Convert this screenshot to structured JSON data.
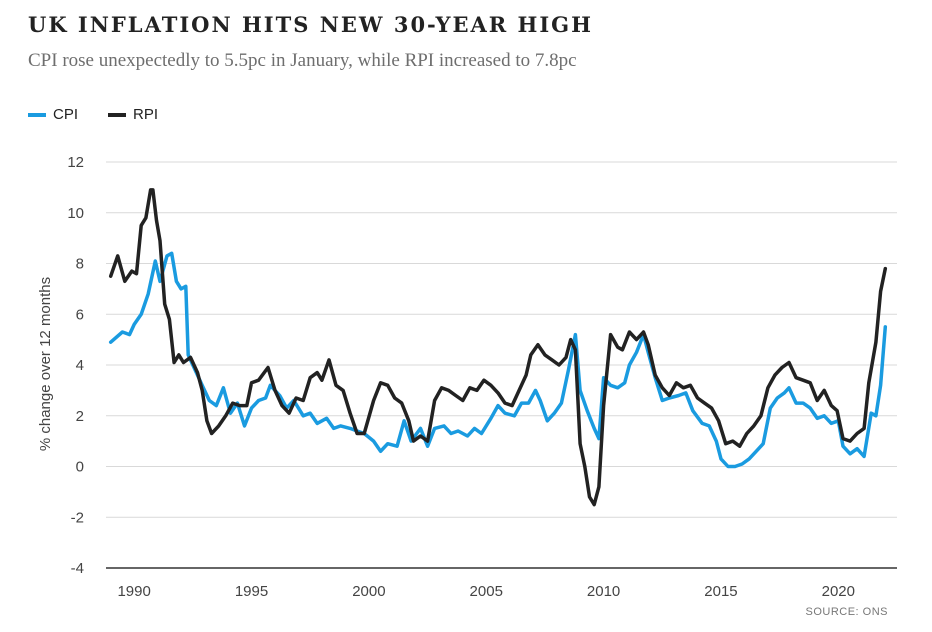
{
  "header": {
    "title": "UK INFLATION HITS NEW 30-YEAR HIGH",
    "subtitle": "CPI rose unexpectedly to 5.5pc in January, while RPI increased to 7.8pc"
  },
  "footer": {
    "source": "SOURCE: ONS"
  },
  "colors": {
    "cpi": "#1a9be0",
    "rpi": "#222222",
    "grid": "#d9d9d9",
    "axis": "#333333"
  },
  "chart_data": {
    "type": "line",
    "title": "UK INFLATION HITS NEW 30-YEAR HIGH",
    "subtitle": "CPI rose unexpectedly to 5.5pc in January, while RPI increased to 7.8pc",
    "xlabel": "",
    "ylabel": "% change over 12 months",
    "xlim": [
      1988.8,
      2022.5
    ],
    "ylim": [
      -4,
      12
    ],
    "yticks": [
      -4,
      -2,
      0,
      2,
      4,
      6,
      8,
      10,
      12
    ],
    "xticks": [
      1990,
      1995,
      2000,
      2005,
      2010,
      2015,
      2020
    ],
    "grid": true,
    "legend": "top-left",
    "series": [
      {
        "name": "CPI",
        "color": "#1a9be0",
        "points": [
          [
            1989.0,
            4.9
          ],
          [
            1989.5,
            5.3
          ],
          [
            1989.8,
            5.2
          ],
          [
            1990.0,
            5.6
          ],
          [
            1990.3,
            6.0
          ],
          [
            1990.6,
            6.8
          ],
          [
            1990.9,
            8.1
          ],
          [
            1991.1,
            7.3
          ],
          [
            1991.4,
            8.3
          ],
          [
            1991.6,
            8.4
          ],
          [
            1991.8,
            7.3
          ],
          [
            1992.0,
            7.0
          ],
          [
            1992.2,
            7.1
          ],
          [
            1992.3,
            4.4
          ],
          [
            1992.6,
            3.8
          ],
          [
            1992.9,
            3.2
          ],
          [
            1993.2,
            2.6
          ],
          [
            1993.5,
            2.4
          ],
          [
            1993.8,
            3.1
          ],
          [
            1994.1,
            2.1
          ],
          [
            1994.4,
            2.5
          ],
          [
            1994.7,
            1.6
          ],
          [
            1995.0,
            2.3
          ],
          [
            1995.3,
            2.6
          ],
          [
            1995.6,
            2.7
          ],
          [
            1995.8,
            3.2
          ],
          [
            1996.2,
            2.8
          ],
          [
            1996.5,
            2.3
          ],
          [
            1996.8,
            2.6
          ],
          [
            1997.2,
            2.0
          ],
          [
            1997.5,
            2.1
          ],
          [
            1997.8,
            1.7
          ],
          [
            1998.2,
            1.9
          ],
          [
            1998.5,
            1.5
          ],
          [
            1998.8,
            1.6
          ],
          [
            1999.2,
            1.5
          ],
          [
            1999.5,
            1.4
          ],
          [
            1999.8,
            1.3
          ],
          [
            2000.2,
            1.0
          ],
          [
            2000.5,
            0.6
          ],
          [
            2000.8,
            0.9
          ],
          [
            2001.2,
            0.8
          ],
          [
            2001.5,
            1.8
          ],
          [
            2001.8,
            1.0
          ],
          [
            2002.2,
            1.5
          ],
          [
            2002.5,
            0.8
          ],
          [
            2002.8,
            1.5
          ],
          [
            2003.2,
            1.6
          ],
          [
            2003.5,
            1.3
          ],
          [
            2003.8,
            1.4
          ],
          [
            2004.2,
            1.2
          ],
          [
            2004.5,
            1.5
          ],
          [
            2004.8,
            1.3
          ],
          [
            2005.2,
            1.9
          ],
          [
            2005.5,
            2.4
          ],
          [
            2005.8,
            2.1
          ],
          [
            2006.2,
            2.0
          ],
          [
            2006.5,
            2.5
          ],
          [
            2006.8,
            2.5
          ],
          [
            2007.1,
            3.0
          ],
          [
            2007.3,
            2.6
          ],
          [
            2007.6,
            1.8
          ],
          [
            2007.9,
            2.1
          ],
          [
            2008.2,
            2.5
          ],
          [
            2008.5,
            3.8
          ],
          [
            2008.8,
            5.2
          ],
          [
            2009.0,
            3.0
          ],
          [
            2009.3,
            2.2
          ],
          [
            2009.6,
            1.5
          ],
          [
            2009.8,
            1.1
          ],
          [
            2010.0,
            3.5
          ],
          [
            2010.3,
            3.2
          ],
          [
            2010.6,
            3.1
          ],
          [
            2010.9,
            3.3
          ],
          [
            2011.1,
            4.0
          ],
          [
            2011.4,
            4.5
          ],
          [
            2011.7,
            5.2
          ],
          [
            2011.9,
            4.5
          ],
          [
            2012.2,
            3.5
          ],
          [
            2012.5,
            2.6
          ],
          [
            2012.8,
            2.7
          ],
          [
            2013.2,
            2.8
          ],
          [
            2013.5,
            2.9
          ],
          [
            2013.8,
            2.2
          ],
          [
            2014.2,
            1.7
          ],
          [
            2014.5,
            1.6
          ],
          [
            2014.8,
            1.0
          ],
          [
            2015.0,
            0.3
          ],
          [
            2015.3,
            0.0
          ],
          [
            2015.6,
            0.0
          ],
          [
            2015.9,
            0.1
          ],
          [
            2016.2,
            0.3
          ],
          [
            2016.5,
            0.6
          ],
          [
            2016.8,
            0.9
          ],
          [
            2017.1,
            2.3
          ],
          [
            2017.4,
            2.7
          ],
          [
            2017.7,
            2.9
          ],
          [
            2017.9,
            3.1
          ],
          [
            2018.2,
            2.5
          ],
          [
            2018.5,
            2.5
          ],
          [
            2018.8,
            2.3
          ],
          [
            2019.1,
            1.9
          ],
          [
            2019.4,
            2.0
          ],
          [
            2019.7,
            1.7
          ],
          [
            2020.0,
            1.8
          ],
          [
            2020.2,
            0.8
          ],
          [
            2020.5,
            0.5
          ],
          [
            2020.8,
            0.7
          ],
          [
            2021.1,
            0.4
          ],
          [
            2021.4,
            2.1
          ],
          [
            2021.6,
            2.0
          ],
          [
            2021.8,
            3.2
          ],
          [
            2022.0,
            5.5
          ]
        ]
      },
      {
        "name": "RPI",
        "color": "#222222",
        "points": [
          [
            1989.0,
            7.5
          ],
          [
            1989.3,
            8.3
          ],
          [
            1989.6,
            7.3
          ],
          [
            1989.9,
            7.7
          ],
          [
            1990.1,
            7.6
          ],
          [
            1990.3,
            9.5
          ],
          [
            1990.5,
            9.8
          ],
          [
            1990.7,
            10.9
          ],
          [
            1990.8,
            10.9
          ],
          [
            1990.95,
            9.7
          ],
          [
            1991.1,
            8.9
          ],
          [
            1991.3,
            6.4
          ],
          [
            1991.5,
            5.8
          ],
          [
            1991.7,
            4.1
          ],
          [
            1991.9,
            4.4
          ],
          [
            1992.1,
            4.1
          ],
          [
            1992.4,
            4.3
          ],
          [
            1992.7,
            3.7
          ],
          [
            1992.9,
            3.0
          ],
          [
            1993.1,
            1.8
          ],
          [
            1993.3,
            1.3
          ],
          [
            1993.6,
            1.6
          ],
          [
            1993.9,
            2.0
          ],
          [
            1994.2,
            2.5
          ],
          [
            1994.5,
            2.4
          ],
          [
            1994.8,
            2.4
          ],
          [
            1995.0,
            3.3
          ],
          [
            1995.3,
            3.4
          ],
          [
            1995.7,
            3.9
          ],
          [
            1996.0,
            3.0
          ],
          [
            1996.3,
            2.4
          ],
          [
            1996.6,
            2.1
          ],
          [
            1996.9,
            2.7
          ],
          [
            1997.2,
            2.6
          ],
          [
            1997.5,
            3.5
          ],
          [
            1997.8,
            3.7
          ],
          [
            1998.0,
            3.4
          ],
          [
            1998.3,
            4.2
          ],
          [
            1998.6,
            3.2
          ],
          [
            1998.9,
            3.0
          ],
          [
            1999.2,
            2.1
          ],
          [
            1999.5,
            1.3
          ],
          [
            1999.8,
            1.3
          ],
          [
            2000.2,
            2.6
          ],
          [
            2000.5,
            3.3
          ],
          [
            2000.8,
            3.2
          ],
          [
            2001.1,
            2.7
          ],
          [
            2001.4,
            2.5
          ],
          [
            2001.7,
            1.8
          ],
          [
            2001.9,
            1.0
          ],
          [
            2002.2,
            1.2
          ],
          [
            2002.5,
            1.0
          ],
          [
            2002.8,
            2.6
          ],
          [
            2003.1,
            3.1
          ],
          [
            2003.4,
            3.0
          ],
          [
            2003.7,
            2.8
          ],
          [
            2004.0,
            2.6
          ],
          [
            2004.3,
            3.1
          ],
          [
            2004.6,
            3.0
          ],
          [
            2004.9,
            3.4
          ],
          [
            2005.2,
            3.2
          ],
          [
            2005.5,
            2.9
          ],
          [
            2005.8,
            2.5
          ],
          [
            2006.1,
            2.4
          ],
          [
            2006.4,
            3.0
          ],
          [
            2006.7,
            3.6
          ],
          [
            2006.9,
            4.4
          ],
          [
            2007.2,
            4.8
          ],
          [
            2007.5,
            4.4
          ],
          [
            2007.8,
            4.2
          ],
          [
            2008.1,
            4.0
          ],
          [
            2008.4,
            4.3
          ],
          [
            2008.6,
            5.0
          ],
          [
            2008.8,
            4.6
          ],
          [
            2009.0,
            0.9
          ],
          [
            2009.2,
            0.0
          ],
          [
            2009.4,
            -1.2
          ],
          [
            2009.6,
            -1.5
          ],
          [
            2009.8,
            -0.8
          ],
          [
            2010.0,
            2.4
          ],
          [
            2010.3,
            5.2
          ],
          [
            2010.6,
            4.7
          ],
          [
            2010.8,
            4.6
          ],
          [
            2011.1,
            5.3
          ],
          [
            2011.4,
            5.0
          ],
          [
            2011.7,
            5.3
          ],
          [
            2011.9,
            4.8
          ],
          [
            2012.2,
            3.6
          ],
          [
            2012.5,
            3.1
          ],
          [
            2012.8,
            2.8
          ],
          [
            2013.1,
            3.3
          ],
          [
            2013.4,
            3.1
          ],
          [
            2013.7,
            3.2
          ],
          [
            2014.0,
            2.7
          ],
          [
            2014.3,
            2.5
          ],
          [
            2014.6,
            2.3
          ],
          [
            2014.9,
            1.8
          ],
          [
            2015.2,
            0.9
          ],
          [
            2015.5,
            1.0
          ],
          [
            2015.8,
            0.8
          ],
          [
            2016.1,
            1.3
          ],
          [
            2016.4,
            1.6
          ],
          [
            2016.7,
            2.0
          ],
          [
            2017.0,
            3.1
          ],
          [
            2017.3,
            3.6
          ],
          [
            2017.6,
            3.9
          ],
          [
            2017.9,
            4.1
          ],
          [
            2018.2,
            3.5
          ],
          [
            2018.5,
            3.4
          ],
          [
            2018.8,
            3.3
          ],
          [
            2019.1,
            2.6
          ],
          [
            2019.4,
            3.0
          ],
          [
            2019.7,
            2.4
          ],
          [
            2019.95,
            2.2
          ],
          [
            2020.2,
            1.1
          ],
          [
            2020.5,
            1.0
          ],
          [
            2020.8,
            1.3
          ],
          [
            2021.1,
            1.5
          ],
          [
            2021.3,
            3.3
          ],
          [
            2021.6,
            4.9
          ],
          [
            2021.8,
            6.9
          ],
          [
            2022.0,
            7.8
          ]
        ]
      }
    ]
  }
}
